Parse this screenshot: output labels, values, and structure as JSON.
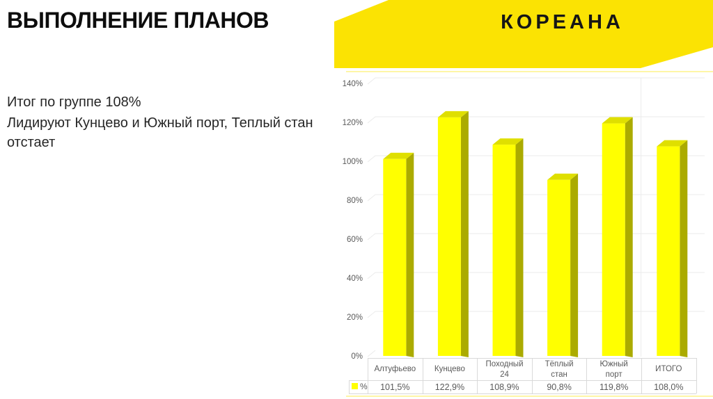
{
  "header": {
    "title": "ВЫПОЛНЕНИЕ ПЛАНОВ",
    "logo_text": "КОРЕАНА"
  },
  "summary": {
    "line1": "Итог по группе 108%",
    "line2": "Лидируют Кунцево и Южный порт, Теплый стан отстает"
  },
  "colors": {
    "banner": "#FBE303",
    "bar_front": "#FFFF00",
    "bar_top": "#DFDF00",
    "bar_side": "#ABAB00",
    "grid": "#EBEBEB",
    "separator": "#ECECEC",
    "table_border": "#D9D9D9",
    "axis_text": "#595959",
    "accent_edge": "rgba(252,229,0,0.35)"
  },
  "chart_data": {
    "type": "bar",
    "style": "3d-column",
    "title": "",
    "xlabel": "",
    "ylabel": "",
    "categories": [
      "Алтуфьево",
      "Кунцево",
      "Походный 24",
      "Тёплый стан",
      "Южный порт",
      "ИТОГО"
    ],
    "series": [
      {
        "name": "%",
        "values": [
          101.5,
          122.9,
          108.9,
          90.8,
          119.8,
          108.0
        ]
      }
    ],
    "value_labels": [
      "101,5%",
      "122,9%",
      "108,9%",
      "90,8%",
      "119,8%",
      "108,0%"
    ],
    "y_axis": {
      "min": 0,
      "max": 140,
      "step": 20,
      "tick_labels": [
        "0%",
        "20%",
        "40%",
        "60%",
        "80%",
        "100%",
        "120%",
        "140%"
      ]
    },
    "legend": {
      "series_label": "%",
      "position": "bottom-table"
    },
    "grid": true
  }
}
